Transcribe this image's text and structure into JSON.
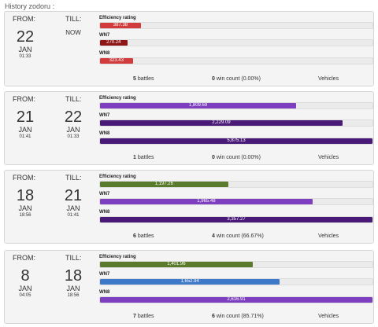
{
  "heading": "History zodoru :",
  "labels": {
    "from": "FROM:",
    "till": "TILL:",
    "battles": "battles",
    "win_count": "win count",
    "vehicles": "Vehicles"
  },
  "metric_names": [
    "Efficiency rating",
    "WN7",
    "WN8"
  ],
  "colors": {
    "red": "#d13b3b",
    "dark_red": "#8e1616",
    "purple": "#7d3fbf",
    "dark_purple": "#4a1a78",
    "green": "#5a7a2c",
    "blue": "#3e78c9"
  },
  "records": [
    {
      "from": {
        "day": "22",
        "month": "JAN",
        "time": "01:33"
      },
      "till": {
        "now": "NOW"
      },
      "metrics": [
        {
          "value": "387.38",
          "fraction": 0.15,
          "color": "#d13b3b"
        },
        {
          "value": "270.24",
          "fraction": 0.1,
          "color": "#8e1616"
        },
        {
          "value": "323.43",
          "fraction": 0.12,
          "color": "#d13b3b"
        }
      ],
      "battles": "5",
      "wins": "0",
      "win_pct": "(0.00%)"
    },
    {
      "from": {
        "day": "21",
        "month": "JAN",
        "time": "01:41"
      },
      "till": {
        "day": "22",
        "month": "JAN",
        "time": "01:33"
      },
      "metrics": [
        {
          "value": "1,809.69",
          "fraction": 0.72,
          "color": "#7d3fbf"
        },
        {
          "value": "2,229.09",
          "fraction": 0.89,
          "color": "#4a1a78"
        },
        {
          "value": "5,875.13",
          "fraction": 1.0,
          "color": "#4a1a78"
        }
      ],
      "battles": "1",
      "wins": "0",
      "win_pct": "(0.00%)"
    },
    {
      "from": {
        "day": "18",
        "month": "JAN",
        "time": "18:56"
      },
      "till": {
        "day": "21",
        "month": "JAN",
        "time": "01:41"
      },
      "metrics": [
        {
          "value": "1,197.26",
          "fraction": 0.47,
          "color": "#5a7a2c"
        },
        {
          "value": "1,965.48",
          "fraction": 0.78,
          "color": "#7d3fbf"
        },
        {
          "value": "3,357.27",
          "fraction": 1.0,
          "color": "#4a1a78"
        }
      ],
      "battles": "6",
      "wins": "4",
      "win_pct": "(66.67%)"
    },
    {
      "from": {
        "day": "8",
        "month": "JAN",
        "time": "04:05"
      },
      "till": {
        "day": "18",
        "month": "JAN",
        "time": "18:56"
      },
      "metrics": [
        {
          "value": "1,401.96",
          "fraction": 0.56,
          "color": "#5a7a2c"
        },
        {
          "value": "1,652.94",
          "fraction": 0.66,
          "color": "#3e78c9"
        },
        {
          "value": "2,616.91",
          "fraction": 1.0,
          "color": "#7d3fbf"
        }
      ],
      "battles": "7",
      "wins": "6",
      "win_pct": "(85.71%)"
    }
  ]
}
